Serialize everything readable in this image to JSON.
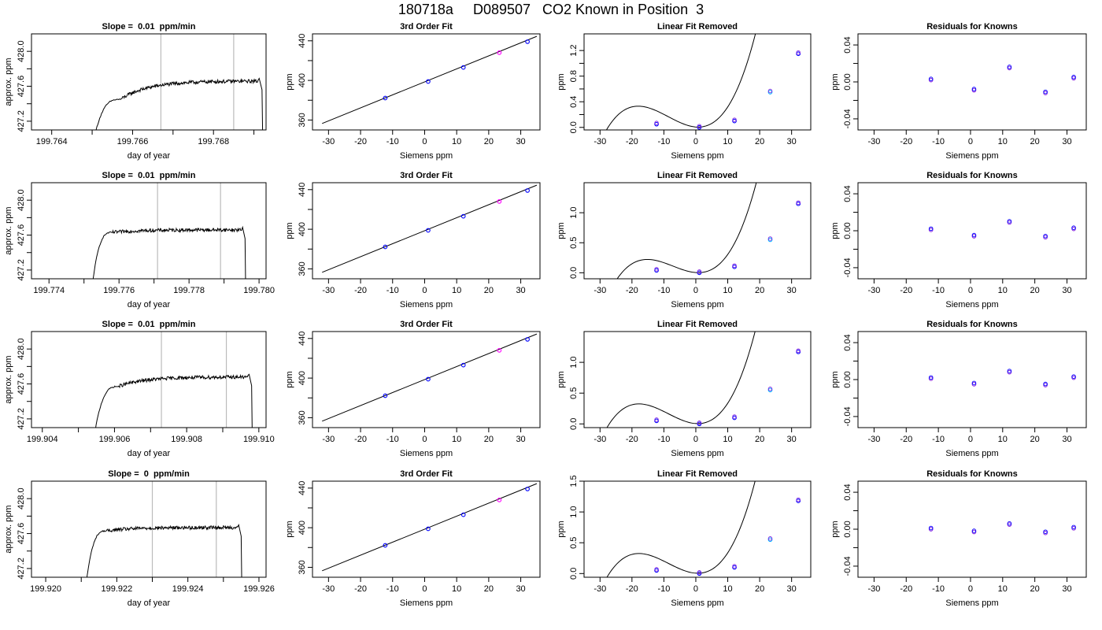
{
  "page": {
    "title": "180718a     D089507   CO2 Known in Position  3"
  },
  "labels": {
    "time_ylabel": "approx. ppm",
    "time_xlabel": "day of year",
    "fit_title": "3rd Order Fit",
    "fit_ylabel": "ppm",
    "lin_title": "Linear Fit Removed",
    "lin_ylabel": "ppm",
    "res_title": "Residuals for Knowns",
    "res_ylabel": "ppm",
    "siemens_xlabel": "Siemens ppm"
  },
  "colors": {
    "trace": "#000000",
    "vline": "#bbbbbb",
    "point_blue": "#0000ff",
    "point_purple": "#8a2be2",
    "point_magenta": "#ff00ff",
    "point_cyan": "#00b0ff",
    "point_red": "#ff0000"
  },
  "chart_data": [
    {
      "row": 1,
      "panel": "timeseries",
      "type": "line",
      "title": "Slope =  0.01  ppm/min",
      "xlabel": "day of year",
      "ylabel": "approx. ppm",
      "xlim": [
        199.7635,
        199.7693
      ],
      "ylim": [
        427.1,
        428.2
      ],
      "xticks": [
        199.764,
        199.766,
        199.768
      ],
      "xtick_labels": [
        "199.764",
        "199.766",
        "199.768"
      ],
      "xminor_ticks": [
        199.765,
        199.767,
        199.769
      ],
      "yticks": [
        427.2,
        427.6,
        428.0
      ],
      "ytick_labels": [
        "427.2",
        "427.6",
        "428.0"
      ],
      "yminor_ticks": [
        427.4,
        427.8
      ],
      "vlines": [
        199.7667,
        199.7685
      ],
      "trace": {
        "start_x": 199.765,
        "rise_end_x": 199.7657,
        "plateau_start": 427.45,
        "plateau_end": 427.66,
        "plateau_noise": 0.02,
        "drop_x": 199.7691,
        "end_x": 199.7692
      }
    },
    {
      "row": 1,
      "panel": "fit",
      "type": "scatter",
      "title": "3rd Order Fit",
      "xlabel": "Siemens ppm",
      "ylabel": "ppm",
      "xlim": [
        -35,
        36
      ],
      "ylim": [
        350,
        447
      ],
      "xticks": [
        -30,
        -20,
        -10,
        0,
        10,
        20,
        30
      ],
      "yticks": [
        360,
        400,
        440
      ],
      "yminor_ticks": [
        380,
        420
      ],
      "x": [
        -12.3,
        1.1,
        12.1,
        23.3,
        32.1
      ],
      "y": [
        382.2,
        398.9,
        413.1,
        428.0,
        439.1
      ],
      "fit_line": [
        [
          -32,
          356.5
        ],
        [
          35,
          444.5
        ]
      ]
    },
    {
      "row": 1,
      "panel": "linear_removed",
      "type": "scatter",
      "title": "Linear Fit Removed",
      "xlabel": "Siemens ppm",
      "ylabel": "ppm",
      "xlim": [
        -35,
        36
      ],
      "ylim": [
        -0.04,
        1.46
      ],
      "xticks": [
        -30,
        -20,
        -10,
        0,
        10,
        20,
        30
      ],
      "yticks": [
        0.0,
        0.4,
        0.8,
        1.2
      ],
      "ytick_labels": [
        "0.0",
        "0.4",
        "0.8",
        "1.2"
      ],
      "yminor_ticks": [
        0.2,
        0.6,
        1.0
      ],
      "x": [
        -12.3,
        1.1,
        12.1,
        23.3,
        32.1
      ],
      "y": [
        0.05,
        0.0,
        0.1,
        0.55,
        1.15
      ],
      "curve": {
        "a0": 0.0061,
        "a1": -0.004,
        "a2": 0.00255,
        "a3": 9.83e-05,
        "x_from": -32,
        "x_to": 35
      }
    },
    {
      "row": 1,
      "panel": "residuals",
      "type": "scatter",
      "title": "Residuals for Knowns",
      "xlabel": "Siemens ppm",
      "ylabel": "ppm",
      "xlim": [
        -35,
        36
      ],
      "ylim": [
        -0.052,
        0.052
      ],
      "xticks": [
        -30,
        -20,
        -10,
        0,
        10,
        20,
        30
      ],
      "yticks": [
        -0.04,
        0.0,
        0.04
      ],
      "ytick_labels": [
        "-0.04",
        "0.00",
        "0.04"
      ],
      "yminor_ticks": [
        -0.02,
        0.02
      ],
      "x": [
        -12.3,
        1.1,
        12.1,
        23.3,
        32.1
      ],
      "y": [
        0.002,
        -0.009,
        0.015,
        -0.012,
        0.004
      ]
    },
    {
      "row": 2,
      "panel": "timeseries",
      "type": "line",
      "title": "Slope =  0.01  ppm/min",
      "xlabel": "day of year",
      "ylabel": "approx. ppm",
      "xlim": [
        199.7735,
        199.7802
      ],
      "ylim": [
        427.1,
        428.2
      ],
      "xticks": [
        199.774,
        199.776,
        199.778,
        199.78
      ],
      "xtick_labels": [
        "199.774",
        "199.776",
        "199.778",
        "199.780"
      ],
      "xminor_ticks": [
        199.775,
        199.777,
        199.779
      ],
      "yticks": [
        427.2,
        427.6,
        428.0
      ],
      "ytick_labels": [
        "427.2",
        "427.6",
        "428.0"
      ],
      "yminor_ticks": [
        427.4,
        427.8
      ],
      "vlines": [
        199.7771,
        199.7789
      ],
      "trace": {
        "start_x": 199.7752,
        "rise_end_x": 199.7758,
        "plateau_start": 427.63,
        "plateau_end": 427.66,
        "plateau_noise": 0.02,
        "drop_x": 199.7795,
        "end_x": 199.7796
      }
    },
    {
      "row": 2,
      "panel": "fit",
      "type": "scatter",
      "title": "3rd Order Fit",
      "xlabel": "Siemens ppm",
      "ylabel": "ppm",
      "xlim": [
        -35,
        36
      ],
      "ylim": [
        350,
        447
      ],
      "xticks": [
        -30,
        -20,
        -10,
        0,
        10,
        20,
        30
      ],
      "yticks": [
        360,
        400,
        440
      ],
      "yminor_ticks": [
        380,
        420
      ],
      "x": [
        -12.3,
        1.1,
        12.1,
        23.3,
        32.1
      ],
      "y": [
        382.2,
        398.9,
        413.1,
        428.0,
        439.1
      ],
      "fit_line": [
        [
          -32,
          356.5
        ],
        [
          35,
          444.5
        ]
      ]
    },
    {
      "row": 2,
      "panel": "linear_removed",
      "type": "scatter",
      "title": "Linear Fit Removed",
      "xlabel": "Siemens ppm",
      "ylabel": "ppm",
      "xlim": [
        -35,
        36
      ],
      "ylim": [
        -0.1,
        1.5
      ],
      "xticks": [
        -30,
        -20,
        -10,
        0,
        10,
        20,
        30
      ],
      "yticks": [
        0.0,
        0.5,
        1.0
      ],
      "ytick_labels": [
        "0.0",
        "0.5",
        "1.0"
      ],
      "x": [
        -12.3,
        1.1,
        12.1,
        23.3,
        32.1
      ],
      "y": [
        0.04,
        0.0,
        0.1,
        0.55,
        1.15
      ],
      "curve": {
        "a0": 0.0035,
        "a1": -0.0039,
        "a2": 0.00233,
        "a3": 0.000108,
        "x_from": -32,
        "x_to": 35
      }
    },
    {
      "row": 2,
      "panel": "residuals",
      "type": "scatter",
      "title": "Residuals for Knowns",
      "xlabel": "Siemens ppm",
      "ylabel": "ppm",
      "xlim": [
        -35,
        36
      ],
      "ylim": [
        -0.052,
        0.052
      ],
      "xticks": [
        -30,
        -20,
        -10,
        0,
        10,
        20,
        30
      ],
      "yticks": [
        -0.04,
        0.0,
        0.04
      ],
      "ytick_labels": [
        "-0.04",
        "0.00",
        "0.04"
      ],
      "yminor_ticks": [
        -0.02,
        0.02
      ],
      "x": [
        -12.3,
        1.1,
        12.1,
        23.3,
        32.1
      ],
      "y": [
        0.001,
        -0.006,
        0.009,
        -0.007,
        0.002
      ]
    },
    {
      "row": 3,
      "panel": "timeseries",
      "type": "line",
      "title": "Slope =  0.01  ppm/min",
      "xlabel": "day of year",
      "ylabel": "approx. ppm",
      "xlim": [
        199.9037,
        199.9102
      ],
      "ylim": [
        427.1,
        428.2
      ],
      "xticks": [
        199.904,
        199.906,
        199.908,
        199.91
      ],
      "xtick_labels": [
        "199.904",
        "199.906",
        "199.908",
        "199.910"
      ],
      "xminor_ticks": [
        199.905,
        199.907,
        199.909
      ],
      "yticks": [
        427.2,
        427.6,
        428.0
      ],
      "ytick_labels": [
        "427.2",
        "427.6",
        "428.0"
      ],
      "yminor_ticks": [
        427.4,
        427.8
      ],
      "vlines": [
        199.9073,
        199.9091
      ],
      "trace": {
        "start_x": 199.9054,
        "rise_end_x": 199.9061,
        "plateau_start": 427.57,
        "plateau_end": 427.68,
        "plateau_noise": 0.02,
        "drop_x": 199.9097,
        "end_x": 199.9098
      }
    },
    {
      "row": 3,
      "panel": "fit",
      "type": "scatter",
      "title": "3rd Order Fit",
      "xlabel": "Siemens ppm",
      "ylabel": "ppm",
      "xlim": [
        -35,
        36
      ],
      "ylim": [
        350,
        447
      ],
      "xticks": [
        -30,
        -20,
        -10,
        0,
        10,
        20,
        30
      ],
      "yticks": [
        360,
        400,
        440
      ],
      "yminor_ticks": [
        380,
        420
      ],
      "x": [
        -12.3,
        1.1,
        12.1,
        23.3,
        32.1
      ],
      "y": [
        382.2,
        398.9,
        413.1,
        428.0,
        439.1
      ],
      "fit_line": [
        [
          -32,
          356.5
        ],
        [
          35,
          444.5
        ]
      ]
    },
    {
      "row": 3,
      "panel": "linear_removed",
      "type": "scatter",
      "title": "Linear Fit Removed",
      "xlabel": "Siemens ppm",
      "ylabel": "ppm",
      "xlim": [
        -35,
        36
      ],
      "ylim": [
        -0.06,
        1.5
      ],
      "xticks": [
        -30,
        -20,
        -10,
        0,
        10,
        20,
        30
      ],
      "yticks": [
        0.0,
        0.5,
        1.0
      ],
      "ytick_labels": [
        "0.0",
        "0.5",
        "1.0"
      ],
      "x": [
        -12.3,
        1.1,
        12.1,
        23.3,
        32.1
      ],
      "y": [
        0.05,
        0.0,
        0.1,
        0.55,
        1.17
      ],
      "curve": {
        "a0": 0.0057,
        "a1": -0.00346,
        "a2": 0.00263,
        "a3": 0.000102,
        "x_from": -32,
        "x_to": 35
      }
    },
    {
      "row": 3,
      "panel": "residuals",
      "type": "scatter",
      "title": "Residuals for Knowns",
      "xlabel": "Siemens ppm",
      "ylabel": "ppm",
      "xlim": [
        -35,
        36
      ],
      "ylim": [
        -0.052,
        0.052
      ],
      "xticks": [
        -30,
        -20,
        -10,
        0,
        10,
        20,
        30
      ],
      "yticks": [
        -0.04,
        0.0,
        0.04
      ],
      "ytick_labels": [
        "-0.04",
        "0.00",
        "0.04"
      ],
      "yminor_ticks": [
        -0.02,
        0.02
      ],
      "x": [
        -12.3,
        1.1,
        12.1,
        23.3,
        32.1
      ],
      "y": [
        0.001,
        -0.005,
        0.008,
        -0.006,
        0.002
      ]
    },
    {
      "row": 4,
      "panel": "timeseries",
      "type": "line",
      "title": "Slope =  0  ppm/min",
      "xlabel": "day of year",
      "ylabel": "approx. ppm",
      "xlim": [
        199.9196,
        199.9262
      ],
      "ylim": [
        427.1,
        428.2
      ],
      "xticks": [
        199.92,
        199.922,
        199.924,
        199.926
      ],
      "xtick_labels": [
        "199.920",
        "199.922",
        "199.924",
        "199.926"
      ],
      "xminor_ticks": [
        199.921,
        199.923,
        199.925
      ],
      "yticks": [
        427.2,
        427.6,
        428.0
      ],
      "ytick_labels": [
        "427.2",
        "427.6",
        "428.0"
      ],
      "yminor_ticks": [
        427.4,
        427.8
      ],
      "vlines": [
        199.923,
        199.9248
      ],
      "trace": {
        "start_x": 199.9211,
        "rise_end_x": 199.9217,
        "plateau_start": 427.63,
        "plateau_end": 427.67,
        "plateau_noise": 0.02,
        "drop_x": 199.9254,
        "end_x": 199.9255
      }
    },
    {
      "row": 4,
      "panel": "fit",
      "type": "scatter",
      "title": "3rd Order Fit",
      "xlabel": "Siemens ppm",
      "ylabel": "ppm",
      "xlim": [
        -35,
        36
      ],
      "ylim": [
        350,
        447
      ],
      "xticks": [
        -30,
        -20,
        -10,
        0,
        10,
        20,
        30
      ],
      "yticks": [
        360,
        400,
        440
      ],
      "yminor_ticks": [
        380,
        420
      ],
      "x": [
        -12.3,
        1.1,
        12.1,
        23.3,
        32.1
      ],
      "y": [
        382.2,
        398.9,
        413.1,
        428.0,
        439.1
      ],
      "fit_line": [
        [
          -32,
          356.5
        ],
        [
          35,
          444.5
        ]
      ]
    },
    {
      "row": 4,
      "panel": "linear_removed",
      "type": "scatter",
      "title": "Linear Fit Removed",
      "xlabel": "Siemens ppm",
      "ylabel": "ppm",
      "xlim": [
        -35,
        36
      ],
      "ylim": [
        -0.06,
        1.5
      ],
      "xticks": [
        -30,
        -20,
        -10,
        0,
        10,
        20,
        30
      ],
      "yticks": [
        0.0,
        0.5,
        1.0,
        1.5
      ],
      "ytick_labels": [
        "0.0",
        "0.5",
        "1.0",
        "1.5"
      ],
      "x": [
        -12.3,
        1.1,
        12.1,
        23.3,
        32.1
      ],
      "y": [
        0.05,
        0.0,
        0.1,
        0.55,
        1.18
      ],
      "curve": {
        "a0": 0.0057,
        "a1": -0.00346,
        "a2": 0.00263,
        "a3": 0.000102,
        "x_from": -32,
        "x_to": 35
      }
    },
    {
      "row": 4,
      "panel": "residuals",
      "type": "scatter",
      "title": "Residuals for Knowns",
      "xlabel": "Siemens ppm",
      "ylabel": "ppm",
      "xlim": [
        -35,
        36
      ],
      "ylim": [
        -0.052,
        0.052
      ],
      "xticks": [
        -30,
        -20,
        -10,
        0,
        10,
        20,
        30
      ],
      "yticks": [
        -0.04,
        0.0,
        0.04
      ],
      "ytick_labels": [
        "-0.04",
        "0.00",
        "0.04"
      ],
      "yminor_ticks": [
        -0.02,
        0.02
      ],
      "x": [
        -12.3,
        1.1,
        12.1,
        23.3,
        32.1
      ],
      "y": [
        0.0,
        -0.003,
        0.005,
        -0.004,
        0.001
      ]
    }
  ]
}
